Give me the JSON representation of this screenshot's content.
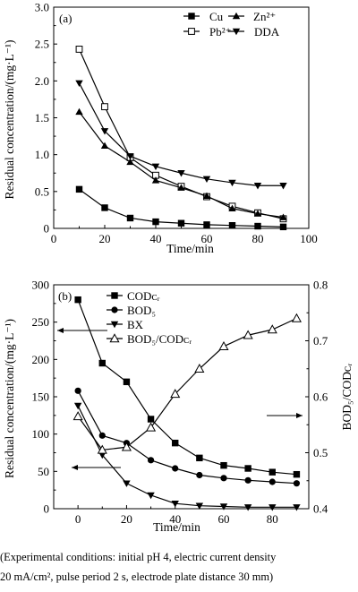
{
  "chart_data": [
    {
      "type": "line",
      "panel_label": "(a)",
      "xlabel": "Time/min",
      "ylabel": "Residual concentration/(mg·L⁻¹)",
      "xlim": [
        0,
        100
      ],
      "ylim": [
        0,
        3.0
      ],
      "x_ticks": [
        "0",
        "20",
        "40",
        "60",
        "80",
        "100"
      ],
      "y_ticks": [
        "0",
        "0.5",
        "1.0",
        "1.5",
        "2.0",
        "2.5",
        "3.0"
      ],
      "legend_placement": "top-right",
      "series": [
        {
          "name": "Cu",
          "marker": "square-filled",
          "x": [
            10,
            20,
            30,
            40,
            50,
            60,
            70,
            80,
            90
          ],
          "values": [
            0.53,
            0.28,
            0.14,
            0.09,
            0.07,
            0.05,
            0.04,
            0.03,
            0.02
          ]
        },
        {
          "name": "Pb²⁺",
          "marker": "square-open",
          "x": [
            10,
            20,
            30,
            40,
            50,
            60,
            70,
            80,
            90
          ],
          "values": [
            2.43,
            1.65,
            0.96,
            0.72,
            0.57,
            0.43,
            0.3,
            0.21,
            0.13
          ]
        },
        {
          "name": "Zn²⁺",
          "marker": "triangle-up-filled",
          "x": [
            10,
            20,
            30,
            40,
            50,
            60,
            70,
            80,
            90
          ],
          "values": [
            1.58,
            1.12,
            0.9,
            0.65,
            0.55,
            0.44,
            0.27,
            0.2,
            0.15
          ]
        },
        {
          "name": "DDA",
          "marker": "triangle-down-filled",
          "x": [
            10,
            20,
            30,
            40,
            50,
            60,
            70,
            80,
            90
          ],
          "values": [
            1.97,
            1.32,
            0.98,
            0.84,
            0.75,
            0.67,
            0.62,
            0.58,
            0.58
          ]
        }
      ]
    },
    {
      "type": "line",
      "panel_label": "(b)",
      "xlabel": "Time/min",
      "ylabel": "Residual concentration/(mg·L⁻¹)",
      "y2label": "BOD₅/CODᴄᵣ",
      "xlim": [
        -10,
        95
      ],
      "ylim": [
        0,
        300
      ],
      "y2lim": [
        0.4,
        0.8
      ],
      "x_ticks": [
        "0",
        "20",
        "40",
        "60",
        "80"
      ],
      "y_ticks": [
        "0",
        "50",
        "100",
        "150",
        "200",
        "250",
        "300"
      ],
      "y2_ticks": [
        "0.4",
        "0.5",
        "0.6",
        "0.7",
        "0.8"
      ],
      "legend_placement": "top-right",
      "series": [
        {
          "name": "CODᴄᵣ",
          "axis": "left",
          "marker": "square-filled",
          "x": [
            0,
            10,
            20,
            30,
            40,
            50,
            60,
            70,
            80,
            90
          ],
          "values": [
            280,
            195,
            170,
            120,
            88,
            68,
            58,
            54,
            49,
            46
          ]
        },
        {
          "name": "BOD₅",
          "axis": "left",
          "marker": "circle-filled",
          "x": [
            0,
            10,
            20,
            30,
            40,
            50,
            60,
            70,
            80,
            90
          ],
          "values": [
            158,
            98,
            88,
            65,
            54,
            45,
            41,
            38,
            36,
            34
          ]
        },
        {
          "name": "BX",
          "axis": "left",
          "marker": "triangle-down-filled",
          "x": [
            0,
            10,
            20,
            30,
            40,
            50,
            60,
            70,
            80,
            90
          ],
          "values": [
            138,
            72,
            34,
            18,
            7,
            4,
            3,
            2,
            2,
            2
          ]
        },
        {
          "name": "BOD₅/CODᴄᵣ",
          "axis": "right",
          "marker": "triangle-up-open",
          "x": [
            0,
            10,
            20,
            30,
            40,
            50,
            60,
            70,
            80,
            90
          ],
          "values": [
            0.565,
            0.505,
            0.51,
            0.545,
            0.605,
            0.65,
            0.69,
            0.71,
            0.72,
            0.74
          ]
        }
      ],
      "arrows": [
        {
          "axis": "left",
          "direction": "left"
        },
        {
          "axis": "left",
          "direction": "left"
        },
        {
          "axis": "right",
          "direction": "right"
        }
      ]
    }
  ],
  "caption": {
    "line1": "(Experimental conditions: initial pH 4, electric current density",
    "line2": "20 mA/cm², pulse period 2 s, electrode plate distance 30 mm)"
  }
}
